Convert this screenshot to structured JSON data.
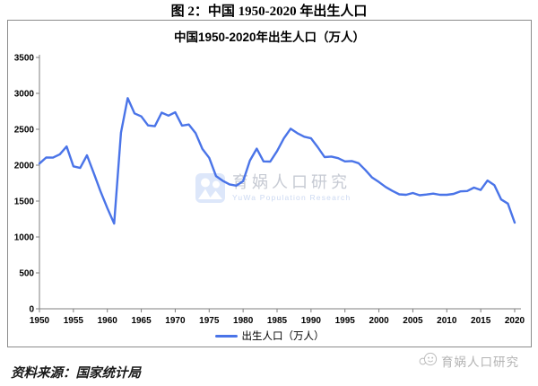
{
  "figure_title": "图 2：中国 1950-2020 年出生人口",
  "chart": {
    "title": "中国1950-2020年出生人口（万人）",
    "legend_label": "出生人口（万人）",
    "line_color": "#4a74e8"
  },
  "watermark_center": {
    "icon": "yuwa-family-logo",
    "line1": "育娲人口研究",
    "line2": "YuWa Population Research"
  },
  "watermark_corner": {
    "icon": "yuwa-smiley-logo",
    "label": "育娲人口研究"
  },
  "source_note": "资料来源：国家统计局",
  "chart_data": {
    "type": "line",
    "title": "中国1950-2020年出生人口（万人）",
    "xlabel": "",
    "ylabel": "",
    "xlim": [
      1950,
      2020
    ],
    "ylim": [
      0,
      3500
    ],
    "x_ticks": [
      1950,
      1955,
      1960,
      1965,
      1970,
      1975,
      1980,
      1985,
      1990,
      1995,
      2000,
      2005,
      2010,
      2015,
      2020
    ],
    "y_ticks": [
      0,
      500,
      1000,
      1500,
      2000,
      2500,
      3000,
      3500
    ],
    "grid": false,
    "legend_position": "bottom",
    "series": [
      {
        "name": "出生人口（万人）",
        "color": "#4a74e8",
        "x": [
          1950,
          1951,
          1952,
          1953,
          1954,
          1955,
          1956,
          1957,
          1958,
          1959,
          1960,
          1961,
          1962,
          1963,
          1964,
          1965,
          1966,
          1967,
          1968,
          1969,
          1970,
          1971,
          1972,
          1973,
          1974,
          1975,
          1976,
          1977,
          1978,
          1979,
          1980,
          1981,
          1982,
          1983,
          1984,
          1985,
          1986,
          1987,
          1988,
          1989,
          1990,
          1991,
          1992,
          1993,
          1994,
          1995,
          1996,
          1997,
          1998,
          1999,
          2000,
          2001,
          2002,
          2003,
          2004,
          2005,
          2006,
          2007,
          2008,
          2009,
          2010,
          2011,
          2012,
          2013,
          2014,
          2015,
          2016,
          2017,
          2018,
          2019,
          2020
        ],
        "values": [
          2023,
          2107,
          2105,
          2151,
          2260,
          1984,
          1961,
          2138,
          1889,
          1635,
          1402,
          1187,
          2451,
          2934,
          2721,
          2679,
          2554,
          2543,
          2731,
          2690,
          2736,
          2551,
          2566,
          2447,
          2226,
          2102,
          1849,
          1783,
          1733,
          1715,
          1776,
          2064,
          2230,
          2052,
          2050,
          2196,
          2374,
          2508,
          2445,
          2396,
          2374,
          2250,
          2113,
          2120,
          2098,
          2052,
          2057,
          2028,
          1934,
          1827,
          1765,
          1696,
          1641,
          1594,
          1588,
          1612,
          1581,
          1591,
          1604,
          1587,
          1588,
          1600,
          1635,
          1640,
          1687,
          1655,
          1786,
          1723,
          1523,
          1465,
          1200
        ]
      }
    ]
  }
}
